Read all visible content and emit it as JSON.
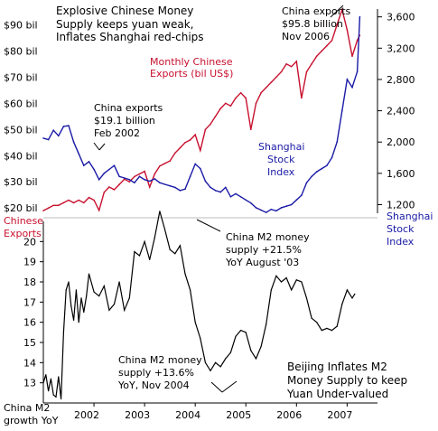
{
  "chart_data": [
    {
      "type": "line",
      "title": "Explosive Chinese Money Supply keeps yuan weak, Inflates Shanghai red-chips",
      "title_lines": [
        "Explosive Chinese Money",
        "Supply keeps yuan weak,",
        "Inflates Shanghai red-chips"
      ],
      "xlim": [
        2001.0,
        2007.6
      ],
      "left_axis": {
        "label_lines": [
          "Chinese",
          "Exports"
        ],
        "ticks": [
          20,
          30,
          40,
          50,
          60,
          70,
          80,
          90
        ],
        "tick_labels": [
          "$20 bil",
          "$30 bil",
          "$40 bil",
          "$50 bil",
          "$60 bil",
          "$70 bil",
          "$80 bil",
          "$90 bil"
        ],
        "ylim": [
          18,
          96
        ],
        "color": "#c8102e"
      },
      "right_axis": {
        "label_lines": [
          "Shanghai",
          "Stock",
          "Index"
        ],
        "ticks": [
          1200,
          1600,
          2000,
          2400,
          2800,
          3200,
          3600
        ],
        "tick_labels": [
          "1,200",
          "1,600",
          "2,000",
          "2,400",
          "2,800",
          "3,200",
          "3,600"
        ],
        "ylim": [
          1090,
          3700
        ],
        "color": "#1a1aa6"
      },
      "series": [
        {
          "name": "Monthly Chinese Exports (bil US$)",
          "name_lines": [
            "Monthly Chinese",
            "Exports (bil US$)"
          ],
          "axis": "left",
          "color": "#c8102e",
          "x": [
            2001.0,
            2001.1,
            2001.2,
            2001.3,
            2001.4,
            2001.5,
            2001.6,
            2001.7,
            2001.8,
            2001.9,
            2002.0,
            2002.1,
            2002.2,
            2002.3,
            2002.4,
            2002.5,
            2002.6,
            2002.7,
            2002.8,
            2002.9,
            2003.0,
            2003.1,
            2003.2,
            2003.3,
            2003.4,
            2003.5,
            2003.6,
            2003.7,
            2003.8,
            2003.9,
            2004.0,
            2004.1,
            2004.2,
            2004.3,
            2004.4,
            2004.5,
            2004.6,
            2004.7,
            2004.8,
            2004.9,
            2005.0,
            2005.1,
            2005.2,
            2005.3,
            2005.4,
            2005.5,
            2005.6,
            2005.7,
            2005.8,
            2005.9,
            2006.0,
            2006.1,
            2006.2,
            2006.3,
            2006.4,
            2006.5,
            2006.6,
            2006.7,
            2006.8,
            2006.9,
            2007.0,
            2007.1,
            2007.2,
            2007.25
          ],
          "values": [
            19,
            20,
            21,
            21,
            22,
            23,
            22,
            23,
            22,
            24,
            23,
            19.1,
            26,
            28,
            27,
            29,
            31,
            30,
            32,
            33,
            34,
            28,
            33,
            36,
            37,
            38,
            41,
            43,
            45,
            46,
            48,
            42,
            50,
            52,
            55,
            58,
            60,
            59,
            62,
            64,
            62,
            50,
            60,
            64,
            66,
            68,
            70,
            72,
            75,
            74,
            76,
            62,
            72,
            75,
            78,
            80,
            82,
            84,
            90,
            95.8,
            88,
            78,
            84,
            86
          ]
        },
        {
          "name": "Shanghai Stock Index",
          "name_lines": [
            "Shanghai",
            "Stock",
            "Index"
          ],
          "axis": "right",
          "color": "#1a1aa6",
          "x": [
            2001.0,
            2001.1,
            2001.2,
            2001.3,
            2001.4,
            2001.5,
            2001.6,
            2001.7,
            2001.8,
            2001.9,
            2002.0,
            2002.1,
            2002.2,
            2002.3,
            2002.4,
            2002.5,
            2002.6,
            2002.7,
            2002.8,
            2002.9,
            2003.0,
            2003.1,
            2003.2,
            2003.3,
            2003.4,
            2003.5,
            2003.6,
            2003.7,
            2003.8,
            2003.9,
            2004.0,
            2004.1,
            2004.2,
            2004.3,
            2004.4,
            2004.5,
            2004.6,
            2004.7,
            2004.8,
            2004.9,
            2005.0,
            2005.1,
            2005.2,
            2005.3,
            2005.4,
            2005.5,
            2005.6,
            2005.7,
            2005.8,
            2005.9,
            2006.0,
            2006.1,
            2006.2,
            2006.3,
            2006.4,
            2006.5,
            2006.6,
            2006.7,
            2006.8,
            2006.9,
            2007.0,
            2007.1,
            2007.2,
            2007.25
          ],
          "values": [
            2050,
            2030,
            2150,
            2080,
            2200,
            2210,
            2000,
            1850,
            1700,
            1750,
            1650,
            1520,
            1600,
            1650,
            1700,
            1560,
            1540,
            1520,
            1480,
            1560,
            1520,
            1500,
            1530,
            1480,
            1460,
            1440,
            1420,
            1380,
            1400,
            1560,
            1720,
            1660,
            1500,
            1420,
            1380,
            1360,
            1420,
            1300,
            1340,
            1300,
            1260,
            1220,
            1160,
            1130,
            1100,
            1140,
            1120,
            1160,
            1180,
            1200,
            1260,
            1320,
            1480,
            1560,
            1620,
            1660,
            1700,
            1800,
            2000,
            2400,
            2800,
            2700,
            2900,
            3600
          ]
        }
      ]
    },
    {
      "type": "line",
      "title": "",
      "xlim": [
        2001.0,
        2007.6
      ],
      "ylim": [
        12,
        21
      ],
      "ylabel_lines": [
        "China M2",
        "growth YoY"
      ],
      "yticks": [
        13,
        14,
        15,
        16,
        17,
        18,
        19,
        20
      ],
      "xticks": [
        2002,
        2003,
        2004,
        2005,
        2006,
        2007
      ],
      "series": [
        {
          "name": "China M2 growth YoY",
          "color": "#000000",
          "x": [
            2001.0,
            2001.05,
            2001.1,
            2001.15,
            2001.2,
            2001.25,
            2001.3,
            2001.35,
            2001.4,
            2001.45,
            2001.5,
            2001.55,
            2001.6,
            2001.65,
            2001.7,
            2001.75,
            2001.8,
            2001.85,
            2001.9,
            2002.0,
            2002.1,
            2002.2,
            2002.3,
            2002.4,
            2002.5,
            2002.6,
            2002.7,
            2002.8,
            2002.9,
            2003.0,
            2003.1,
            2003.2,
            2003.3,
            2003.4,
            2003.5,
            2003.6,
            2003.7,
            2003.8,
            2003.9,
            2004.0,
            2004.1,
            2004.2,
            2004.3,
            2004.4,
            2004.5,
            2004.6,
            2004.7,
            2004.8,
            2004.9,
            2005.0,
            2005.1,
            2005.2,
            2005.3,
            2005.4,
            2005.5,
            2005.6,
            2005.7,
            2005.8,
            2005.9,
            2006.0,
            2006.1,
            2006.2,
            2006.3,
            2006.4,
            2006.5,
            2006.6,
            2006.7,
            2006.8,
            2006.9,
            2007.0,
            2007.1,
            2007.15
          ],
          "values": [
            13.0,
            13.4,
            12.6,
            13.2,
            12.4,
            12.3,
            13.3,
            12.2,
            15.5,
            17.6,
            18.0,
            16.8,
            16.1,
            17.6,
            16.0,
            17.2,
            16.5,
            17.3,
            18.4,
            17.5,
            17.3,
            17.8,
            16.6,
            16.9,
            18.0,
            16.6,
            17.2,
            19.5,
            19.3,
            20.0,
            19.1,
            20.2,
            21.5,
            20.6,
            19.6,
            19.4,
            19.8,
            18.4,
            17.6,
            16.0,
            15.2,
            14.0,
            13.6,
            14.0,
            13.8,
            14.2,
            14.5,
            15.3,
            15.6,
            15.5,
            14.6,
            14.2,
            14.8,
            15.9,
            17.6,
            18.3,
            18.0,
            18.2,
            17.6,
            18.1,
            18.0,
            17.2,
            16.2,
            16.0,
            15.6,
            15.7,
            15.6,
            15.8,
            16.9,
            17.6,
            17.2,
            17.4
          ]
        }
      ]
    }
  ],
  "annotations": {
    "china_exports_2006": [
      "China exports",
      "$95.8 billion",
      "Nov 2006"
    ],
    "china_exports_2002": [
      "China exports",
      "$19.1 billion",
      "Feb 2002"
    ],
    "m2_aug_03": [
      "China M2 money",
      "supply +21.5%",
      "YoY August '03"
    ],
    "m2_nov_04": [
      "China M2 money",
      "supply +13.6%",
      "YoY, Nov 2004"
    ],
    "beijing": [
      "Beijing Inflates M2",
      "Money Supply to keep",
      "Yuan Under-valued"
    ]
  }
}
